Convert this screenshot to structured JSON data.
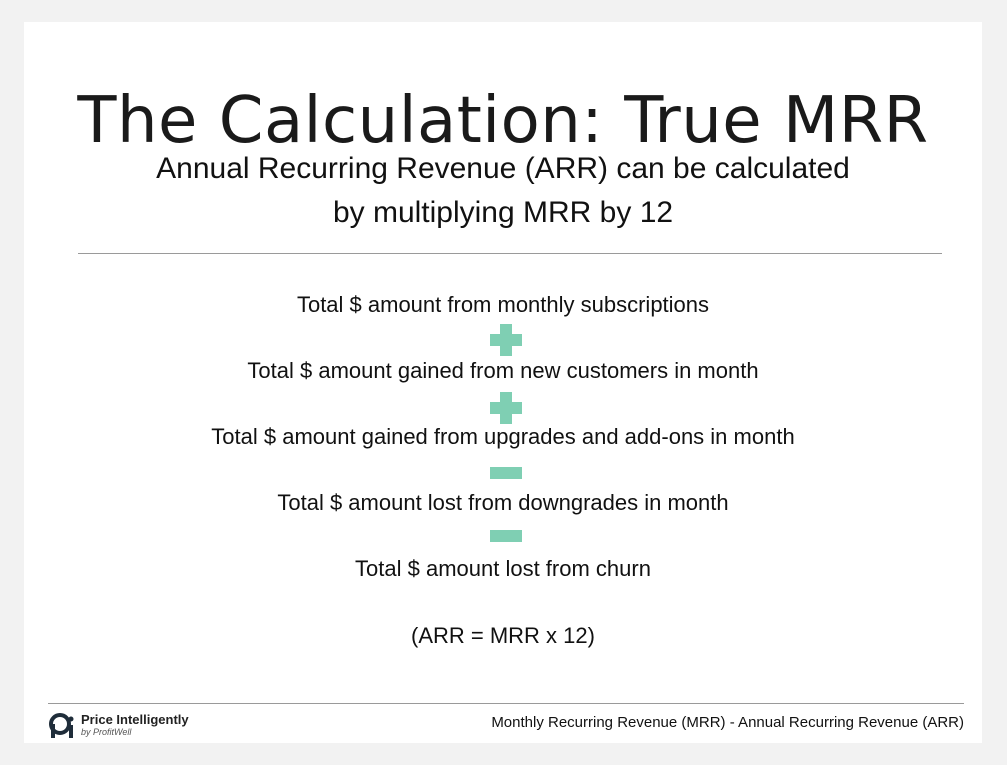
{
  "slide": {
    "title": "The Calculation: True MRR",
    "subtitle_line1": "Annual Recurring Revenue (ARR) can be calculated",
    "subtitle_line2": "by multiplying MRR by 12"
  },
  "formula": {
    "items": [
      "Total $ amount from monthly subscriptions",
      "Total $ amount gained from new customers in month",
      "Total $ amount gained from upgrades and add-ons in month",
      "Total $ amount lost from downgrades in month",
      "Total $ amount lost from churn"
    ],
    "operators": [
      "plus-icon",
      "plus-icon",
      "minus-icon",
      "minus-icon"
    ],
    "operator_color": "#7fcfb3",
    "note": "(ARR = MRR x 12)"
  },
  "footer": {
    "brand_name": "Price Intelligently",
    "brand_by": "by ProfitWell",
    "caption": "Monthly Recurring Revenue (MRR) - Annual Recurring Revenue (ARR)"
  }
}
